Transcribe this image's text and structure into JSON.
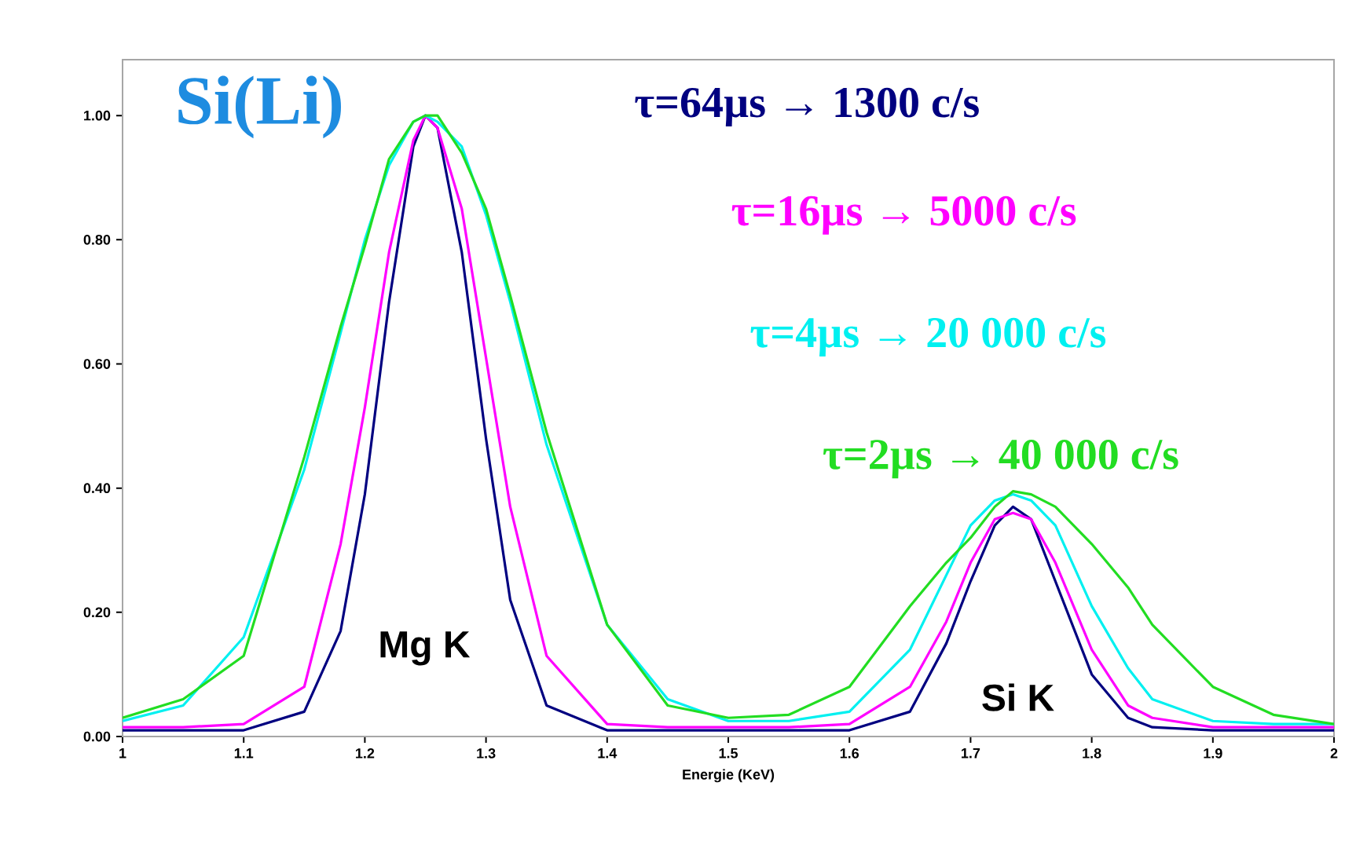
{
  "chart_data": {
    "type": "line",
    "title": "Si(Li)",
    "xlabel": "Energie (KeV)",
    "x": [
      1.0,
      1.05,
      1.1,
      1.15,
      1.18,
      1.2,
      1.22,
      1.24,
      1.25,
      1.26,
      1.28,
      1.3,
      1.32,
      1.35,
      1.4,
      1.45,
      1.5,
      1.55,
      1.6,
      1.65,
      1.68,
      1.7,
      1.72,
      1.735,
      1.75,
      1.77,
      1.8,
      1.83,
      1.85,
      1.9,
      1.95,
      2.0
    ],
    "series": [
      {
        "name": "τ=64µs → 1300 c/s",
        "color": "#000080",
        "values": [
          0.01,
          0.01,
          0.01,
          0.04,
          0.17,
          0.39,
          0.7,
          0.95,
          1.0,
          0.98,
          0.78,
          0.48,
          0.22,
          0.05,
          0.01,
          0.01,
          0.01,
          0.01,
          0.01,
          0.04,
          0.15,
          0.25,
          0.34,
          0.37,
          0.35,
          0.25,
          0.1,
          0.03,
          0.015,
          0.01,
          0.01,
          0.01
        ]
      },
      {
        "name": "τ=16µs → 5000 c/s",
        "color": "#ff00ff",
        "values": [
          0.015,
          0.015,
          0.02,
          0.08,
          0.31,
          0.53,
          0.78,
          0.96,
          1.0,
          0.98,
          0.85,
          0.61,
          0.37,
          0.13,
          0.02,
          0.015,
          0.015,
          0.015,
          0.02,
          0.08,
          0.185,
          0.28,
          0.35,
          0.36,
          0.35,
          0.28,
          0.14,
          0.05,
          0.03,
          0.015,
          0.015,
          0.015
        ]
      },
      {
        "name": "τ=4µs → 20 000 c/s",
        "color": "#00f0f0",
        "values": [
          0.025,
          0.05,
          0.16,
          0.43,
          0.65,
          0.8,
          0.92,
          0.99,
          1.0,
          0.99,
          0.95,
          0.84,
          0.7,
          0.47,
          0.18,
          0.06,
          0.025,
          0.025,
          0.04,
          0.14,
          0.26,
          0.34,
          0.38,
          0.39,
          0.38,
          0.34,
          0.21,
          0.11,
          0.06,
          0.025,
          0.02,
          0.02
        ]
      },
      {
        "name": "τ=2µs → 40 000 c/s",
        "color": "#22dd22",
        "values": [
          0.03,
          0.06,
          0.13,
          0.45,
          0.66,
          0.79,
          0.93,
          0.99,
          1.0,
          1.0,
          0.94,
          0.85,
          0.71,
          0.49,
          0.18,
          0.05,
          0.03,
          0.035,
          0.08,
          0.21,
          0.28,
          0.32,
          0.37,
          0.395,
          0.39,
          0.37,
          0.31,
          0.24,
          0.18,
          0.08,
          0.035,
          0.02
        ]
      }
    ],
    "xlim": [
      1,
      2
    ],
    "ylim": [
      0,
      1.09
    ],
    "xticks": [
      1,
      1.1,
      1.2,
      1.3,
      1.4,
      1.5,
      1.6,
      1.7,
      1.8,
      1.9,
      2
    ],
    "yticks": [
      {
        "value": 0,
        "label": "0.00"
      },
      {
        "value": 0.2,
        "label": "0.20"
      },
      {
        "value": 0.4,
        "label": "0.40"
      },
      {
        "value": 0.6,
        "label": "0.60"
      },
      {
        "value": 0.8,
        "label": "0.80"
      },
      {
        "value": 1.0,
        "label": "1.00"
      }
    ],
    "annotations": [
      "Mg K",
      "Si K"
    ],
    "grid": false,
    "legend": false,
    "marker": "none",
    "line_style": "solid"
  }
}
